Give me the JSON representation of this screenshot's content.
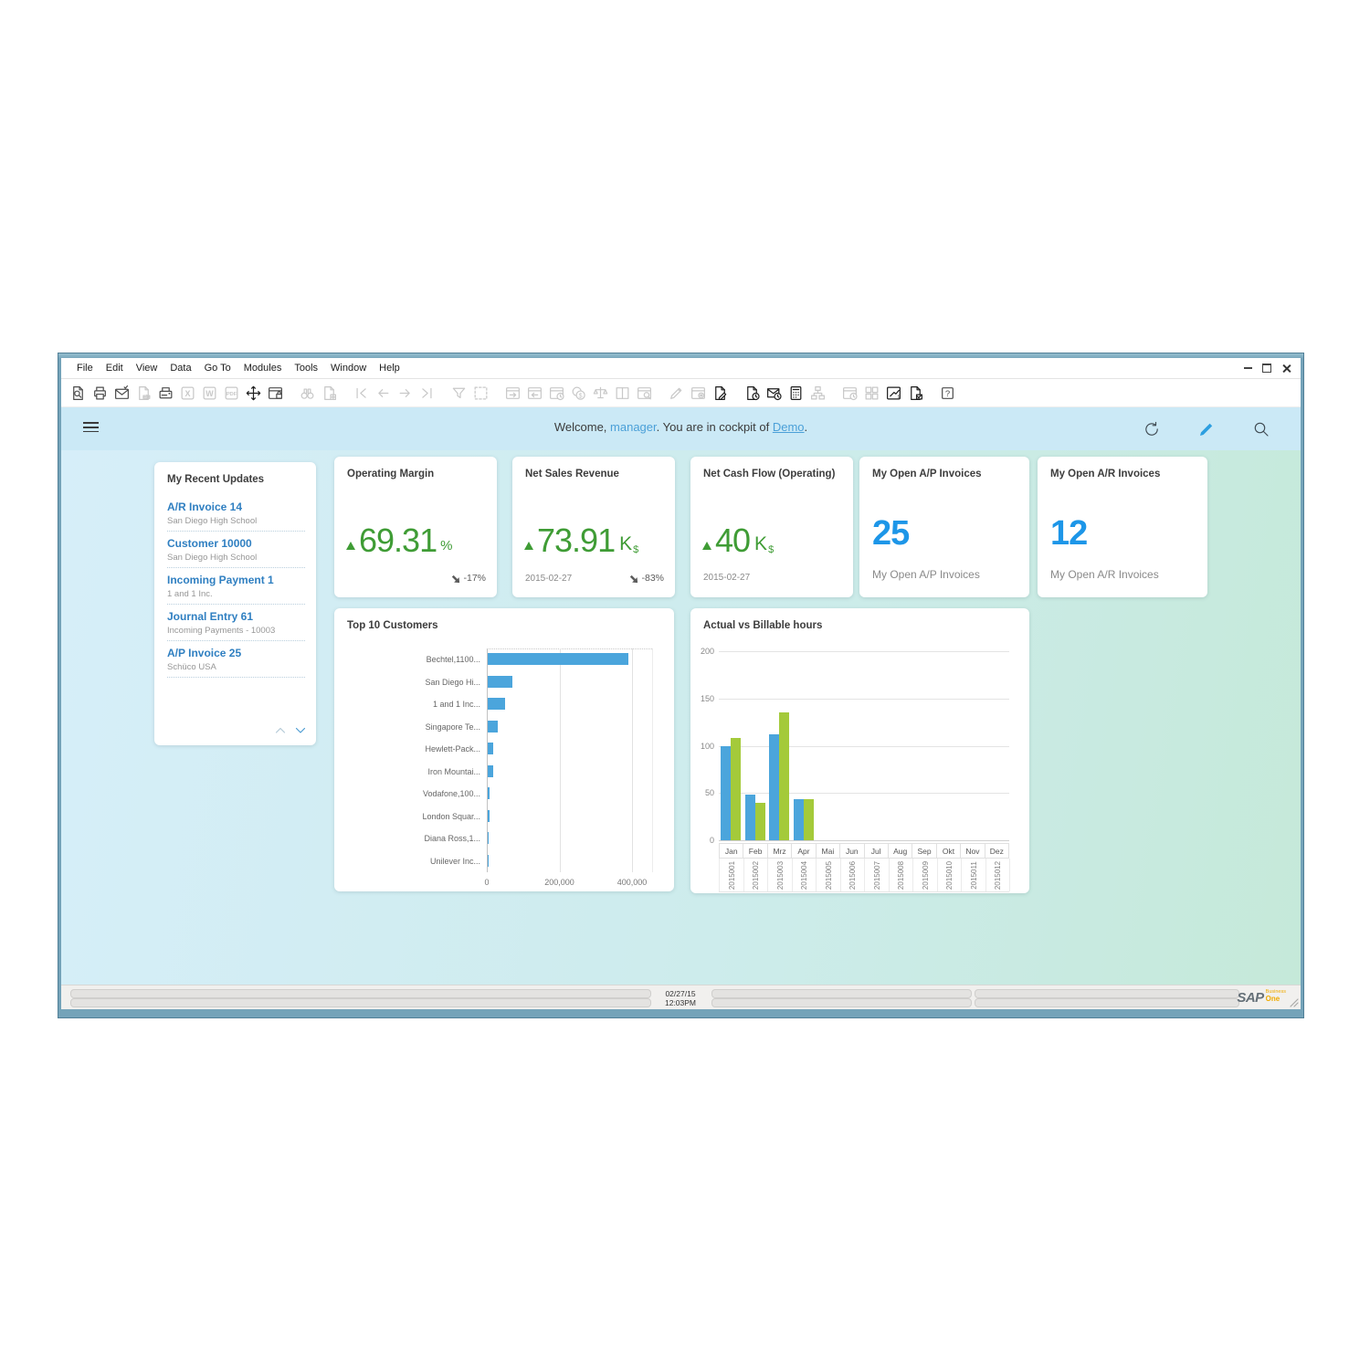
{
  "window": {
    "menu_items": [
      "File",
      "Edit",
      "View",
      "Data",
      "Go To",
      "Modules",
      "Tools",
      "Window",
      "Help"
    ]
  },
  "toolbar": {
    "icons": [
      {
        "name": "print-preview",
        "kind": "doc-search",
        "state": "normal"
      },
      {
        "name": "print",
        "kind": "printer",
        "state": "normal"
      },
      {
        "name": "send-email",
        "kind": "mail-check",
        "state": "normal"
      },
      {
        "name": "send-sms",
        "kind": "doc-send",
        "state": "disabled"
      },
      {
        "name": "send-fax",
        "kind": "fax",
        "state": "normal"
      },
      {
        "name": "export-excel",
        "kind": "box-x",
        "state": "disabled"
      },
      {
        "name": "export-word",
        "kind": "box-w",
        "state": "disabled"
      },
      {
        "name": "export-pdf",
        "kind": "box-pdf",
        "state": "disabled"
      },
      {
        "name": "launch-application",
        "kind": "move",
        "state": "strong"
      },
      {
        "name": "lock-screen",
        "kind": "table-lock",
        "state": "normal"
      },
      {
        "name": "find",
        "kind": "binoculars",
        "state": "disabled",
        "gap_before": true
      },
      {
        "name": "add-record",
        "kind": "doc-plus",
        "state": "disabled"
      },
      {
        "name": "first-record",
        "kind": "nav-first",
        "state": "disabled",
        "gap_before": true
      },
      {
        "name": "previous-record",
        "kind": "nav-prev",
        "state": "disabled"
      },
      {
        "name": "next-record",
        "kind": "nav-next",
        "state": "disabled"
      },
      {
        "name": "last-record",
        "kind": "nav-last",
        "state": "disabled"
      },
      {
        "name": "filter-table",
        "kind": "funnel",
        "state": "disabled",
        "gap_before": true
      },
      {
        "name": "sort-table",
        "kind": "marquee",
        "state": "disabled"
      },
      {
        "name": "navigate-back",
        "kind": "table-in",
        "state": "disabled",
        "gap_before": true
      },
      {
        "name": "navigate-forward",
        "kind": "table-out",
        "state": "disabled"
      },
      {
        "name": "document-history",
        "kind": "table-clock",
        "state": "disabled"
      },
      {
        "name": "payment-means",
        "kind": "coins",
        "state": "disabled"
      },
      {
        "name": "gross-profit",
        "kind": "scales",
        "state": "disabled"
      },
      {
        "name": "split-view",
        "kind": "columns",
        "state": "disabled"
      },
      {
        "name": "query-manager",
        "kind": "table-search",
        "state": "disabled"
      },
      {
        "name": "edit-mode",
        "kind": "pencil",
        "state": "disabled",
        "gap_before": true
      },
      {
        "name": "form-settings",
        "kind": "table-gear",
        "state": "disabled"
      },
      {
        "name": "document-draft",
        "kind": "doc-pencil",
        "state": "strong"
      },
      {
        "name": "document-schedule",
        "kind": "doc-clock",
        "state": "strong",
        "gap_before": true
      },
      {
        "name": "message-alert",
        "kind": "mail-clock",
        "state": "strong"
      },
      {
        "name": "journal-voucher",
        "kind": "calculator",
        "state": "strong"
      },
      {
        "name": "org-chart",
        "kind": "org",
        "state": "disabled"
      },
      {
        "name": "recurring-postings",
        "kind": "table-clock",
        "state": "disabled",
        "gap_before": true
      },
      {
        "name": "workspace-widgets",
        "kind": "table-blocks",
        "state": "disabled"
      },
      {
        "name": "share-chart",
        "kind": "chart-s",
        "state": "strong"
      },
      {
        "name": "approve-document",
        "kind": "doc-check",
        "state": "strong"
      },
      {
        "name": "help",
        "kind": "help",
        "state": "normal",
        "gap_before": true
      }
    ]
  },
  "header": {
    "welcome_prefix": "Welcome, ",
    "user": "manager",
    "middle": ". You are in cockpit of ",
    "cockpit": "Demo",
    "suffix": "."
  },
  "recent_updates": {
    "title": "My Recent Updates",
    "items": [
      {
        "title": "A/R Invoice 14",
        "subtitle": "San Diego High School"
      },
      {
        "title": "Customer 10000",
        "subtitle": "San Diego High School"
      },
      {
        "title": "Incoming Payment 1",
        "subtitle": "1 and 1 Inc."
      },
      {
        "title": "Journal Entry 61",
        "subtitle": "Incoming Payments - 10003"
      },
      {
        "title": "A/P Invoice 25",
        "subtitle": "Schüco USA"
      }
    ]
  },
  "kpi_cards": [
    {
      "title": "Operating Margin",
      "trend": "up",
      "value": "69.31",
      "unit_main": "%",
      "unit_sub": "",
      "date": "",
      "delta": "-17%"
    },
    {
      "title": "Net Sales Revenue",
      "trend": "up",
      "value": "73.91",
      "unit_main": "K",
      "unit_sub": "$",
      "date": "2015-02-27",
      "delta": "-83%"
    },
    {
      "title": "Net Cash Flow (Operating)",
      "trend": "up",
      "value": "40",
      "unit_main": "K",
      "unit_sub": "$",
      "date": "2015-02-27",
      "delta": ""
    },
    {
      "title": "My Open A/P Invoices",
      "count": "25",
      "label": "My Open A/P Invoices"
    },
    {
      "title": "My Open A/R Invoices",
      "count": "12",
      "label": "My Open A/R Invoices"
    }
  ],
  "chart_data": [
    {
      "type": "bar",
      "orientation": "horizontal",
      "title": "Top 10 Customers",
      "categories": [
        "Bechtel,1100...",
        "San Diego Hi...",
        "1 and 1 Inc...",
        "Singapore Te...",
        "Hewlett-Pack...",
        "Iron Mountai...",
        "Vodafone,100...",
        "London Squar...",
        "Diana Ross,1...",
        "Unilever Inc..."
      ],
      "values": [
        387000,
        68000,
        48000,
        28000,
        15000,
        15000,
        6000,
        5000,
        1300,
        500
      ],
      "xlim": [
        0,
        400000
      ],
      "xticks": [
        "0",
        "200,000",
        "400,000"
      ],
      "xtick_values": [
        0,
        200000,
        400000
      ],
      "bar_color": "#4ba5dc",
      "grid": true,
      "legend": "none"
    },
    {
      "type": "bar",
      "orientation": "vertical",
      "title": "Actual vs Billable hours",
      "categories": [
        "Jan",
        "Feb",
        "Mrz",
        "Apr",
        "Mai",
        "Jun",
        "Jul",
        "Aug",
        "Sep",
        "Okt",
        "Nov",
        "Dez"
      ],
      "sub_categories": [
        "2015001",
        "2015002",
        "2015003",
        "2015004",
        "2015005",
        "2015006",
        "2015007",
        "2015008",
        "2015009",
        "2015010",
        "2015011",
        "2015012"
      ],
      "series": [
        {
          "name": "Actual hours",
          "color": "#4ba5dc",
          "values": [
            100,
            48,
            112,
            43,
            0,
            0,
            0,
            0,
            0,
            0,
            0,
            0
          ]
        },
        {
          "name": "Billable hours",
          "color": "#a4ca3a",
          "values": [
            108,
            40,
            135,
            43,
            0,
            0,
            0,
            0,
            0,
            0,
            0,
            0
          ]
        }
      ],
      "ylim": [
        0,
        200
      ],
      "yticks": [
        0,
        50,
        100,
        150,
        200
      ],
      "grid": true,
      "legend": "none"
    }
  ],
  "status_bar": {
    "date": "02/27/15",
    "time": "12:03PM",
    "logo_sap": "SAP",
    "logo_business": "Business",
    "logo_one": "One"
  },
  "colors": {
    "kpi_green": "#3f9c35",
    "kpi_blue": "#1d96e8",
    "delta_red": "#c8372d",
    "bar_blue": "#4ba5dc",
    "bar_green": "#a4ca3a",
    "link_blue": "#4ba0d8"
  }
}
